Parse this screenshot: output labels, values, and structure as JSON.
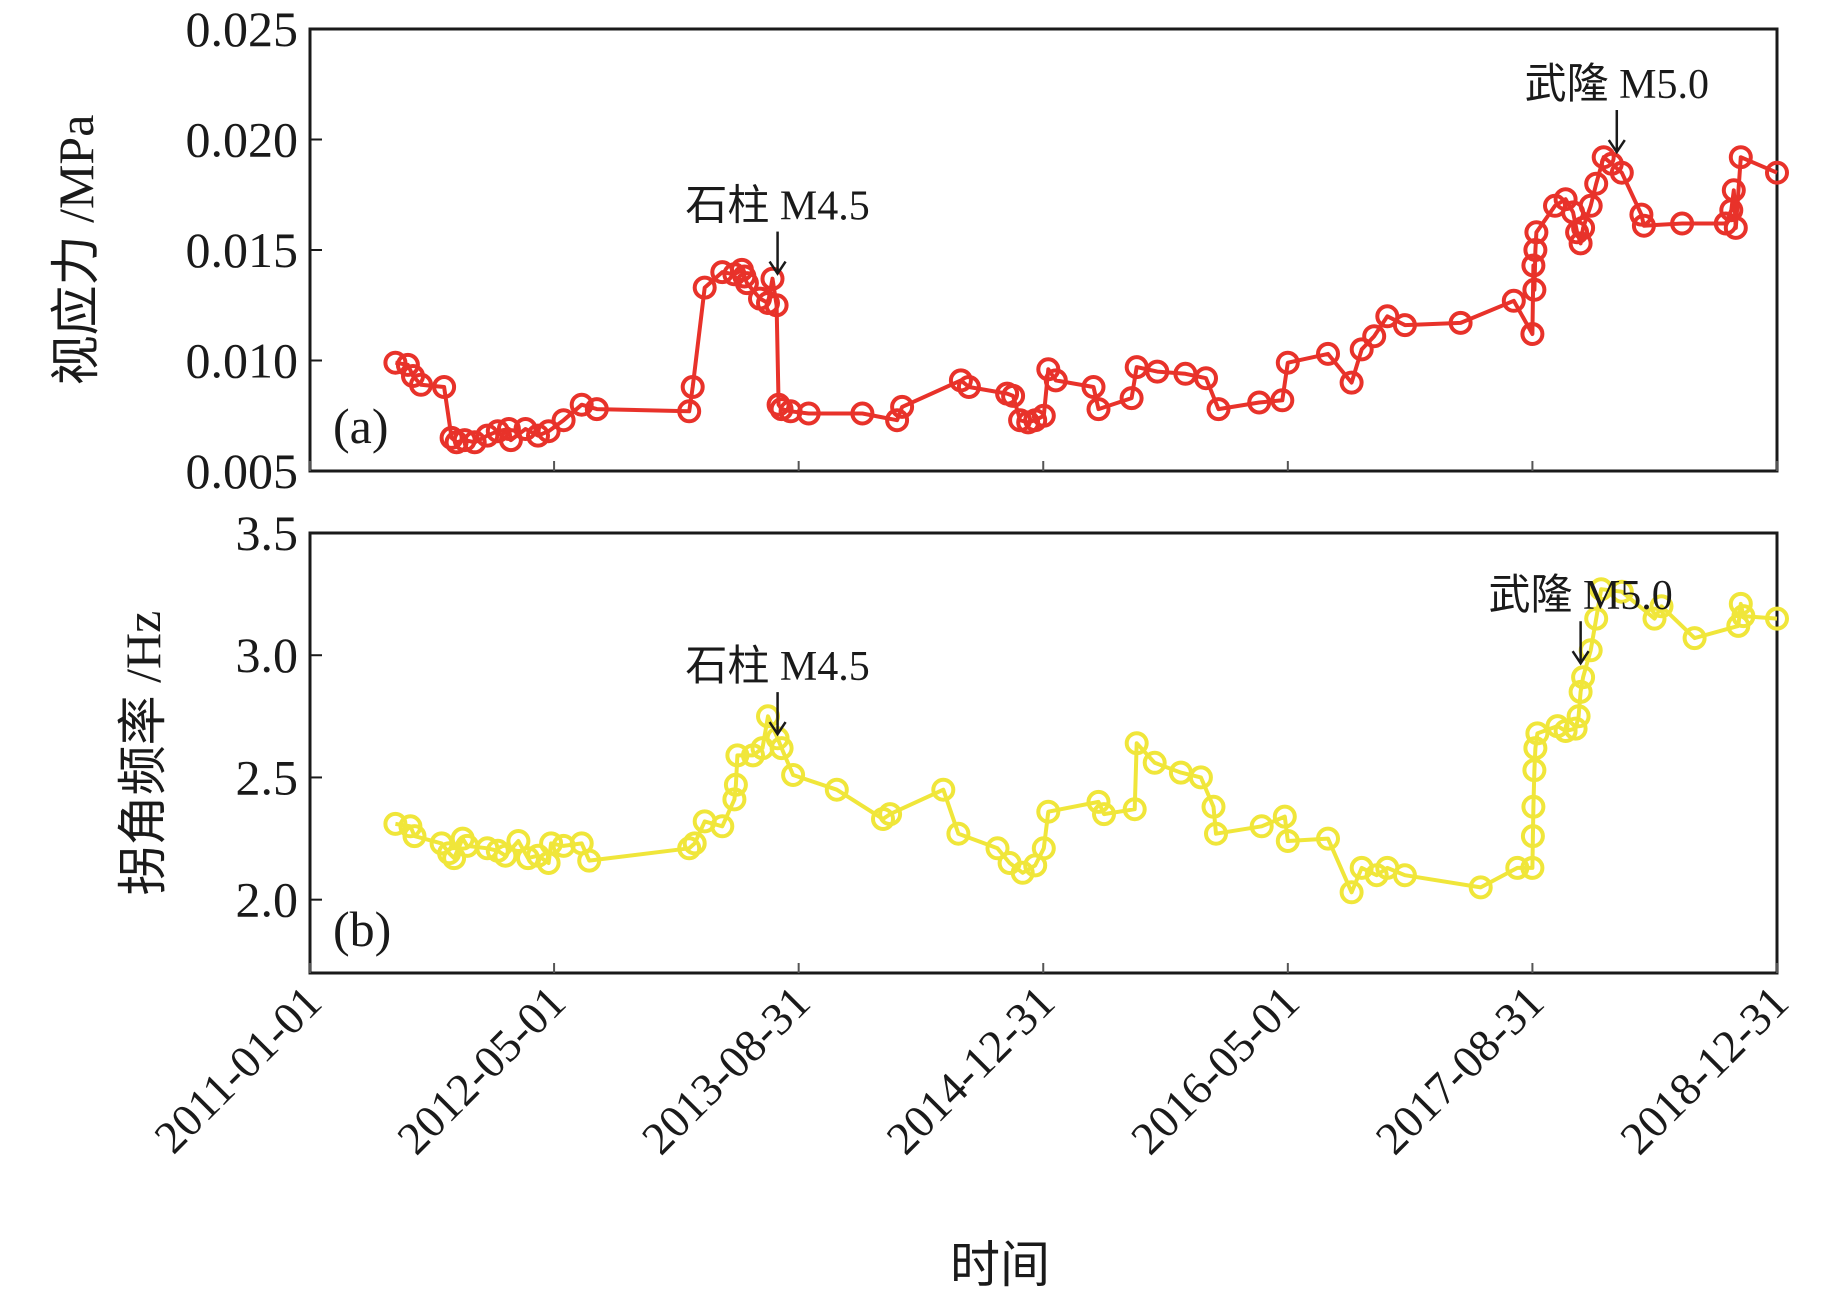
{
  "figure": {
    "xlabel": "时间",
    "x_tick_labels": [
      "2011-01-01",
      "2012-05-01",
      "2013-08-31",
      "2014-12-31",
      "2016-05-01",
      "2017-08-31",
      "2018-12-31"
    ]
  },
  "chart_data": [
    {
      "type": "line",
      "panel_label": "(a)",
      "ylabel": "视应力 /MPa",
      "ylim": [
        0.005,
        0.025
      ],
      "y_ticks": [
        0.005,
        0.01,
        0.015,
        0.02,
        0.025
      ],
      "y_tick_labels": [
        "0.005",
        "0.010",
        "0.015",
        "0.020",
        "0.025"
      ],
      "x_range": [
        "2011-01-01",
        "2018-12-31"
      ],
      "color": "#e8322a",
      "marker": "circle",
      "annotations": [
        {
          "text": "石柱 M4.5",
          "date": "2013-07-20",
          "y": 0.0133
        },
        {
          "text": "武隆 M5.0",
          "date": "2018-02-15",
          "y": 0.0188
        }
      ],
      "series": [
        {
          "name": "视应力",
          "points": [
            [
              "2011-06-20",
              0.0099
            ],
            [
              "2011-07-15",
              0.0098
            ],
            [
              "2011-07-25",
              0.0093
            ],
            [
              "2011-08-10",
              0.0089
            ],
            [
              "2011-09-25",
              0.0088
            ],
            [
              "2011-10-10",
              0.0065
            ],
            [
              "2011-10-20",
              0.0063
            ],
            [
              "2011-11-05",
              0.0064
            ],
            [
              "2011-11-25",
              0.0063
            ],
            [
              "2011-12-20",
              0.0066
            ],
            [
              "2012-01-10",
              0.0068
            ],
            [
              "2012-02-01",
              0.0069
            ],
            [
              "2012-02-05",
              0.0064
            ],
            [
              "2012-03-05",
              0.0069
            ],
            [
              "2012-03-30",
              0.0066
            ],
            [
              "2012-04-20",
              0.0068
            ],
            [
              "2012-05-20",
              0.0073
            ],
            [
              "2012-06-25",
              0.008
            ],
            [
              "2012-07-25",
              0.0078
            ],
            [
              "2013-01-25",
              0.0077
            ],
            [
              "2013-02-01",
              0.0088
            ],
            [
              "2013-02-25",
              0.0133
            ],
            [
              "2013-04-01",
              0.014
            ],
            [
              "2013-04-25",
              0.0139
            ],
            [
              "2013-05-10",
              0.0141
            ],
            [
              "2013-05-15",
              0.0138
            ],
            [
              "2013-05-20",
              0.0135
            ],
            [
              "2013-06-15",
              0.0128
            ],
            [
              "2013-07-01",
              0.0126
            ],
            [
              "2013-07-10",
              0.0137
            ],
            [
              "2013-07-18",
              0.0125
            ],
            [
              "2013-07-22",
              0.008
            ],
            [
              "2013-07-28",
              0.0078
            ],
            [
              "2013-08-15",
              0.0077
            ],
            [
              "2013-09-20",
              0.0076
            ],
            [
              "2014-01-05",
              0.0076
            ],
            [
              "2014-03-15",
              0.0073
            ],
            [
              "2014-03-25",
              0.0079
            ],
            [
              "2014-07-20",
              0.0091
            ],
            [
              "2014-08-05",
              0.0088
            ],
            [
              "2014-10-20",
              0.0085
            ],
            [
              "2014-11-01",
              0.0084
            ],
            [
              "2014-11-15",
              0.0073
            ],
            [
              "2014-12-01",
              0.0072
            ],
            [
              "2014-12-15",
              0.0073
            ],
            [
              "2015-01-01",
              0.0075
            ],
            [
              "2015-01-10",
              0.0096
            ],
            [
              "2015-01-25",
              0.0091
            ],
            [
              "2015-04-10",
              0.0088
            ],
            [
              "2015-04-20",
              0.0078
            ],
            [
              "2015-06-25",
              0.0083
            ],
            [
              "2015-07-05",
              0.0097
            ],
            [
              "2015-08-15",
              0.0095
            ],
            [
              "2015-10-10",
              0.0094
            ],
            [
              "2015-11-20",
              0.0092
            ],
            [
              "2015-12-15",
              0.0078
            ],
            [
              "2016-03-05",
              0.0081
            ],
            [
              "2016-04-20",
              0.0082
            ],
            [
              "2016-05-01",
              0.0099
            ],
            [
              "2016-07-20",
              0.0103
            ],
            [
              "2016-09-05",
              0.009
            ],
            [
              "2016-09-25",
              0.0105
            ],
            [
              "2016-10-20",
              0.0111
            ],
            [
              "2016-11-15",
              0.012
            ],
            [
              "2016-12-20",
              0.0116
            ],
            [
              "2017-04-10",
              0.0117
            ],
            [
              "2017-07-25",
              0.0127
            ],
            [
              "2017-08-31",
              0.0112
            ],
            [
              "2017-09-02",
              0.0143
            ],
            [
              "2017-09-04",
              0.0132
            ],
            [
              "2017-09-06",
              0.015
            ],
            [
              "2017-09-08",
              0.0158
            ],
            [
              "2017-10-15",
              0.017
            ],
            [
              "2017-11-05",
              0.0173
            ],
            [
              "2017-11-20",
              0.0167
            ],
            [
              "2017-11-28",
              0.0158
            ],
            [
              "2017-12-05",
              0.0153
            ],
            [
              "2017-12-10",
              0.016
            ],
            [
              "2017-12-25",
              0.017
            ],
            [
              "2018-01-05",
              0.018
            ],
            [
              "2018-01-20",
              0.0192
            ],
            [
              "2018-02-05",
              0.0189
            ],
            [
              "2018-02-25",
              0.0185
            ],
            [
              "2018-04-05",
              0.0166
            ],
            [
              "2018-04-10",
              0.0161
            ],
            [
              "2018-06-25",
              0.0162
            ],
            [
              "2018-09-20",
              0.0162
            ],
            [
              "2018-10-01",
              0.0168
            ],
            [
              "2018-10-06",
              0.0177
            ],
            [
              "2018-10-10",
              0.016
            ],
            [
              "2018-10-20",
              0.0192
            ],
            [
              "2018-12-31",
              0.0185
            ]
          ]
        }
      ]
    },
    {
      "type": "line",
      "panel_label": "(b)",
      "ylabel": "拐角频率 /Hz",
      "ylim": [
        1.7,
        3.5
      ],
      "y_ticks": [
        2.0,
        2.5,
        3.0,
        3.5
      ],
      "y_tick_labels": [
        "2.0",
        "2.5",
        "3.0",
        "3.5"
      ],
      "x_range": [
        "2011-01-01",
        "2018-12-31"
      ],
      "color": "#f0e63a",
      "marker": "circle",
      "annotations": [
        {
          "text": "石柱 M4.5",
          "date": "2013-07-20",
          "y": 2.62
        },
        {
          "text": "武隆 M5.0",
          "date": "2017-12-05",
          "y": 2.91
        }
      ],
      "series": [
        {
          "name": "拐角频率",
          "points": [
            [
              "2011-06-20",
              2.31
            ],
            [
              "2011-07-20",
              2.3
            ],
            [
              "2011-07-28",
              2.26
            ],
            [
              "2011-09-20",
              2.23
            ],
            [
              "2011-10-05",
              2.19
            ],
            [
              "2011-10-15",
              2.17
            ],
            [
              "2011-11-01",
              2.25
            ],
            [
              "2011-11-10",
              2.22
            ],
            [
              "2011-12-20",
              2.21
            ],
            [
              "2012-01-10",
              2.2
            ],
            [
              "2012-01-25",
              2.18
            ],
            [
              "2012-02-20",
              2.24
            ],
            [
              "2012-03-10",
              2.17
            ],
            [
              "2012-03-30",
              2.18
            ],
            [
              "2012-04-20",
              2.15
            ],
            [
              "2012-04-25",
              2.23
            ],
            [
              "2012-05-20",
              2.22
            ],
            [
              "2012-06-25",
              2.23
            ],
            [
              "2012-07-10",
              2.16
            ],
            [
              "2013-01-25",
              2.21
            ],
            [
              "2013-02-05",
              2.23
            ],
            [
              "2013-02-25",
              2.32
            ],
            [
              "2013-04-01",
              2.3
            ],
            [
              "2013-04-25",
              2.41
            ],
            [
              "2013-04-28",
              2.47
            ],
            [
              "2013-05-01",
              2.59
            ],
            [
              "2013-06-01",
              2.59
            ],
            [
              "2013-06-20",
              2.62
            ],
            [
              "2013-07-01",
              2.75
            ],
            [
              "2013-07-20",
              2.66
            ],
            [
              "2013-07-28",
              2.62
            ],
            [
              "2013-08-20",
              2.51
            ],
            [
              "2013-11-15",
              2.45
            ],
            [
              "2014-02-15",
              2.33
            ],
            [
              "2014-03-01",
              2.35
            ],
            [
              "2014-06-15",
              2.45
            ],
            [
              "2014-07-15",
              2.27
            ],
            [
              "2014-10-01",
              2.21
            ],
            [
              "2014-10-25",
              2.15
            ],
            [
              "2014-11-20",
              2.11
            ],
            [
              "2014-12-15",
              2.14
            ],
            [
              "2015-01-01",
              2.21
            ],
            [
              "2015-01-10",
              2.36
            ],
            [
              "2015-04-20",
              2.4
            ],
            [
              "2015-05-01",
              2.35
            ],
            [
              "2015-07-01",
              2.37
            ],
            [
              "2015-07-05",
              2.64
            ],
            [
              "2015-08-10",
              2.56
            ],
            [
              "2015-10-01",
              2.52
            ],
            [
              "2015-11-10",
              2.5
            ],
            [
              "2015-12-05",
              2.38
            ],
            [
              "2015-12-10",
              2.27
            ],
            [
              "2016-03-10",
              2.3
            ],
            [
              "2016-04-25",
              2.34
            ],
            [
              "2016-05-01",
              2.24
            ],
            [
              "2016-07-20",
              2.25
            ],
            [
              "2016-09-05",
              2.03
            ],
            [
              "2016-09-25",
              2.13
            ],
            [
              "2016-10-25",
              2.1
            ],
            [
              "2016-11-15",
              2.13
            ],
            [
              "2016-12-20",
              2.1
            ],
            [
              "2017-05-20",
              2.05
            ],
            [
              "2017-08-01",
              2.13
            ],
            [
              "2017-08-31",
              2.13
            ],
            [
              "2017-09-01",
              2.26
            ],
            [
              "2017-09-02",
              2.38
            ],
            [
              "2017-09-04",
              2.53
            ],
            [
              "2017-09-06",
              2.62
            ],
            [
              "2017-09-10",
              2.68
            ],
            [
              "2017-10-20",
              2.71
            ],
            [
              "2017-11-05",
              2.69
            ],
            [
              "2017-11-25",
              2.7
            ],
            [
              "2017-12-01",
              2.75
            ],
            [
              "2017-12-05",
              2.85
            ],
            [
              "2017-12-10",
              2.91
            ],
            [
              "2017-12-25",
              3.02
            ],
            [
              "2018-01-05",
              3.15
            ],
            [
              "2018-01-15",
              3.27
            ],
            [
              "2018-02-25",
              3.26
            ],
            [
              "2018-05-01",
              3.15
            ],
            [
              "2018-05-15",
              3.2
            ],
            [
              "2018-07-20",
              3.07
            ],
            [
              "2018-10-15",
              3.12
            ],
            [
              "2018-10-20",
              3.21
            ],
            [
              "2018-10-25",
              3.16
            ],
            [
              "2018-12-31",
              3.15
            ]
          ]
        }
      ]
    }
  ]
}
